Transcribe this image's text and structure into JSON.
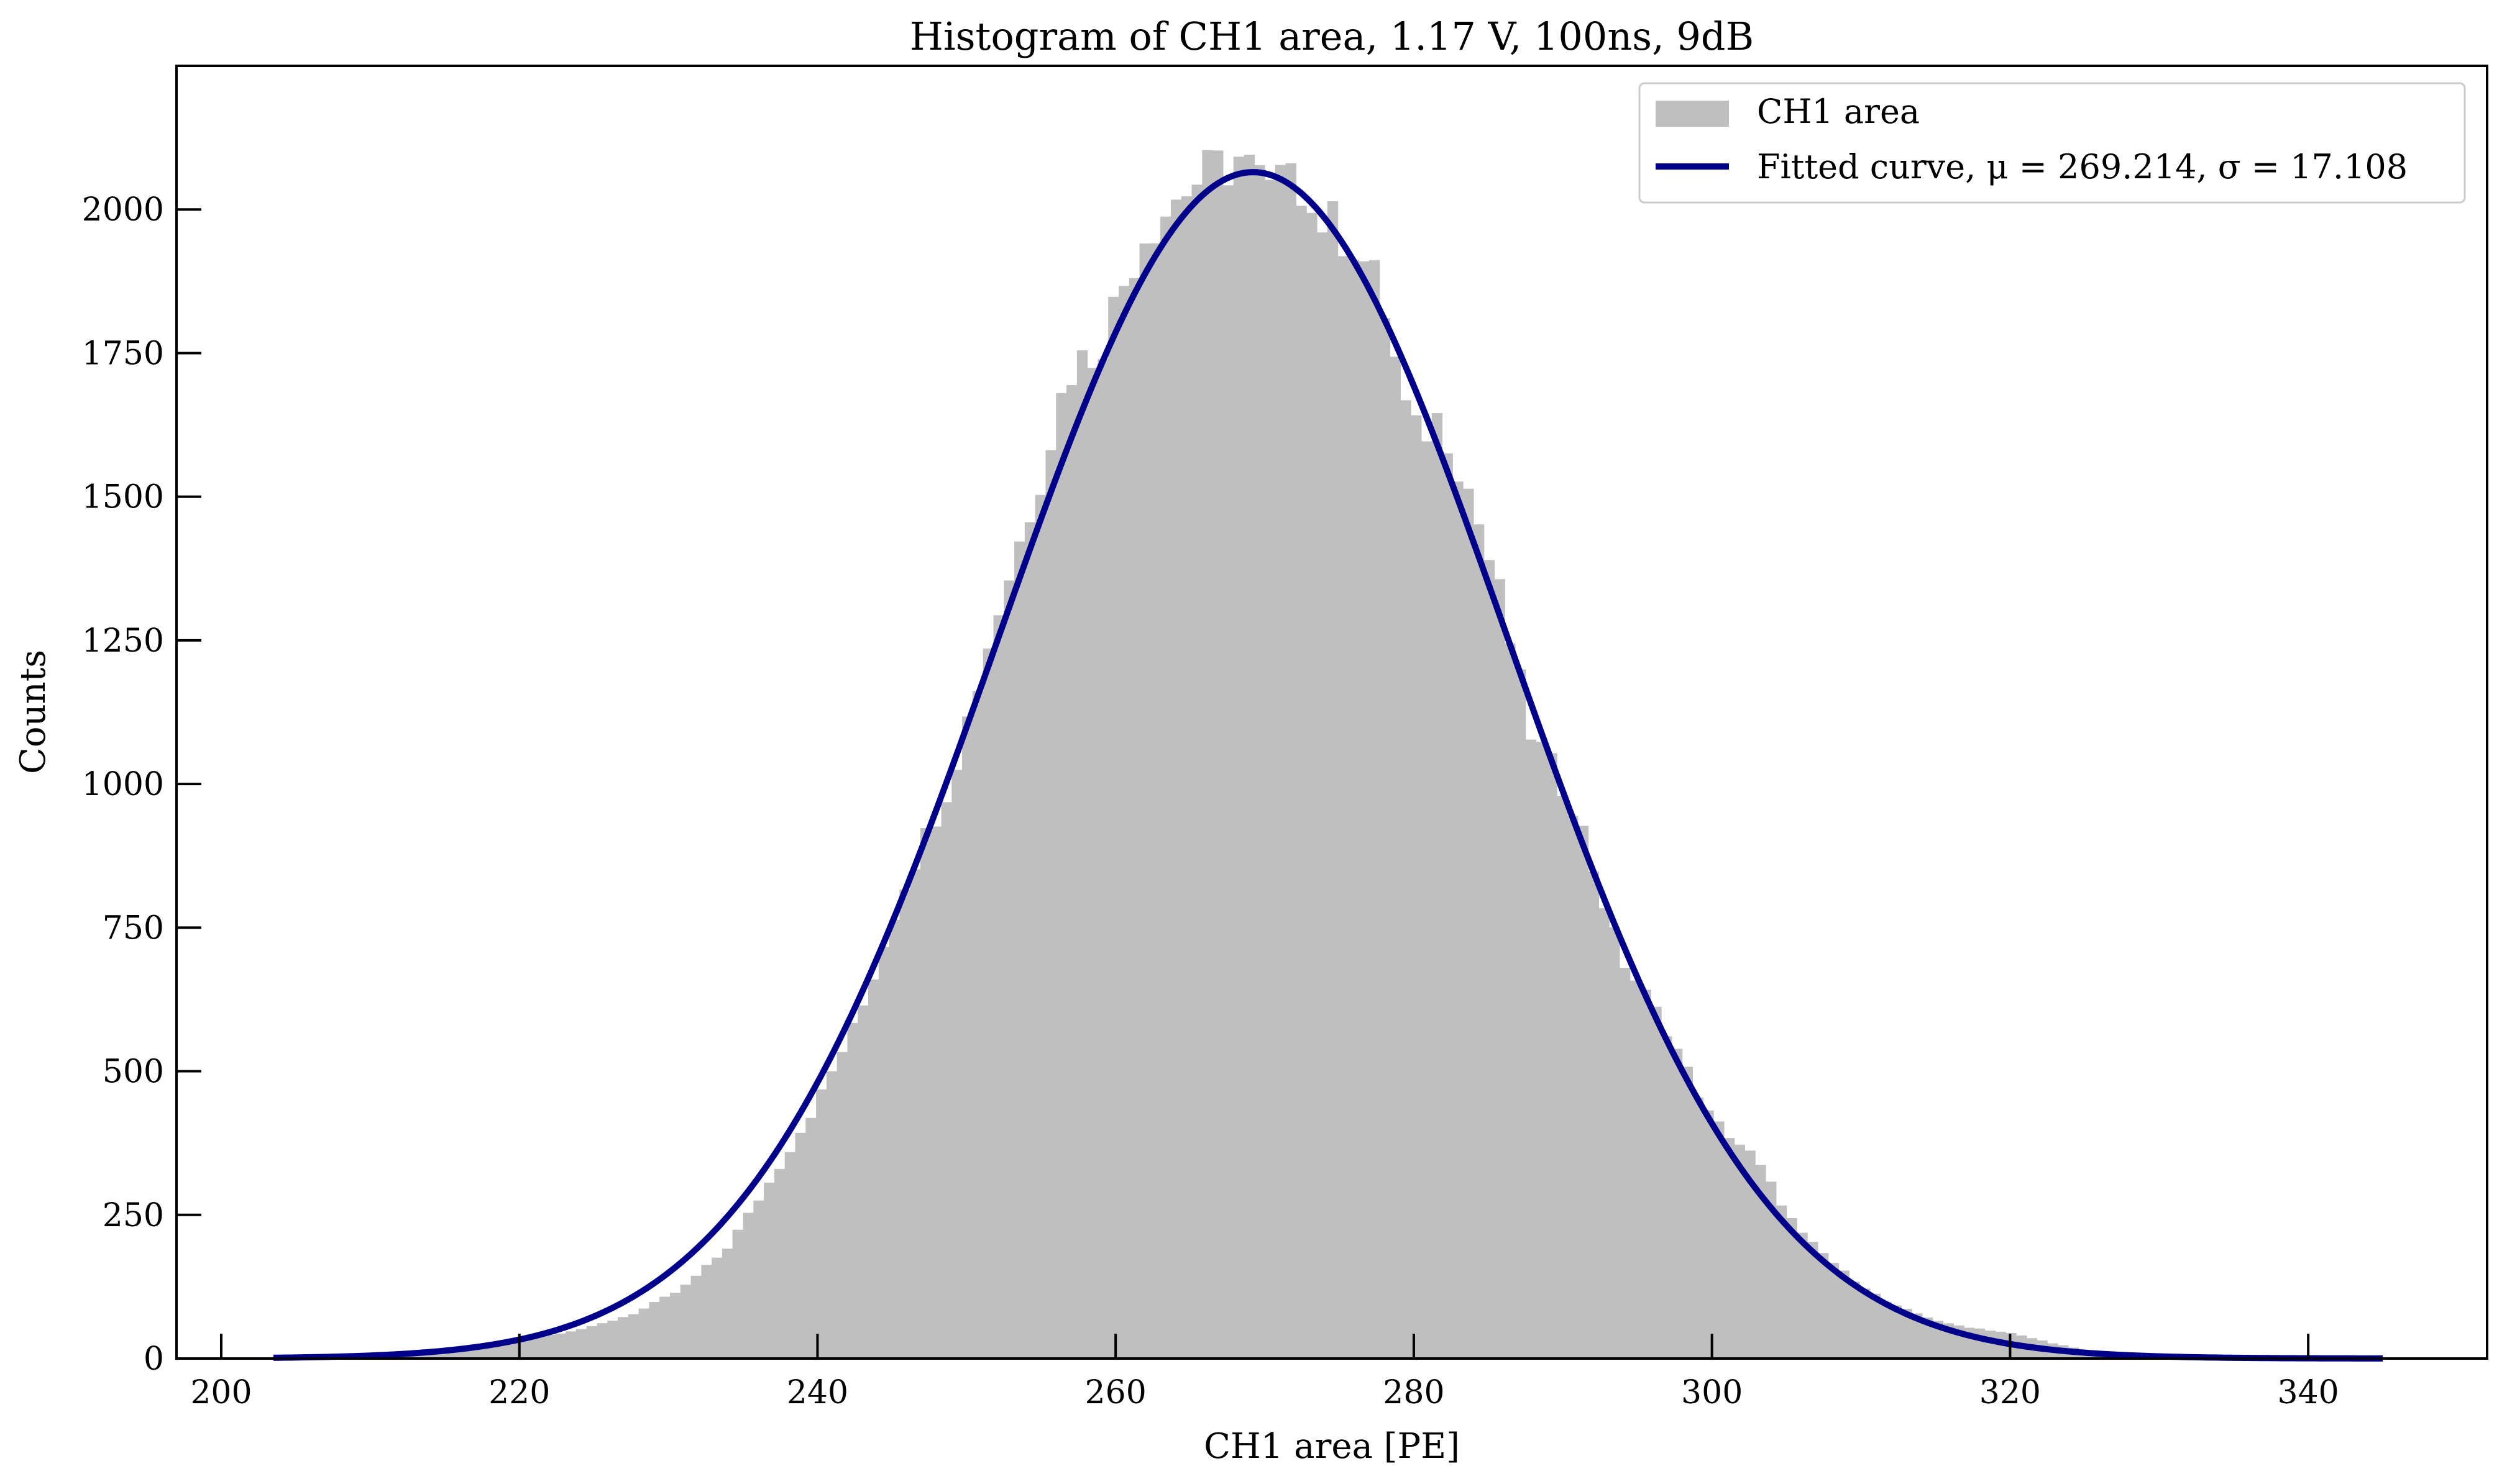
{
  "chart_data": {
    "type": "bar",
    "title": "Histogram of CH1 area, 1.17 V, 100ns, 9dB",
    "xlabel": "CH1 area [PE]",
    "ylabel": "Counts",
    "xlim": [
      197,
      352
    ],
    "ylim": [
      0,
      2250
    ],
    "grid": false,
    "legend_position": "top-right",
    "xticks": [
      200,
      220,
      240,
      260,
      280,
      300,
      320,
      340
    ],
    "yticks": [
      0,
      250,
      500,
      750,
      1000,
      1250,
      1500,
      1750,
      2000
    ],
    "histogram": {
      "name": "CH1 area",
      "color": "#bfbfbf",
      "bin_width": 0.7,
      "bins": [
        [
          203.5,
          1
        ],
        [
          210.5,
          5
        ],
        [
          215.5,
          15
        ],
        [
          219.5,
          30
        ],
        [
          221.5,
          40
        ],
        [
          224.5,
          55
        ],
        [
          227.5,
          80
        ],
        [
          230.5,
          120
        ],
        [
          233.5,
          190
        ],
        [
          236.5,
          310
        ],
        [
          239.5,
          440
        ],
        [
          242.5,
          600
        ],
        [
          245.5,
          830
        ],
        [
          248.5,
          1000
        ],
        [
          251.5,
          1280
        ],
        [
          254.5,
          1530
        ],
        [
          256.5,
          1720
        ],
        [
          258.5,
          1760
        ],
        [
          261.5,
          1960
        ],
        [
          264.5,
          2040
        ],
        [
          266.5,
          2070
        ],
        [
          268.0,
          2090
        ],
        [
          270.5,
          2010
        ],
        [
          271.5,
          2130
        ],
        [
          272.5,
          2000
        ],
        [
          275.5,
          1950
        ],
        [
          277.5,
          1850
        ],
        [
          279.5,
          1600
        ],
        [
          281.5,
          1640
        ],
        [
          283.5,
          1500
        ],
        [
          285.5,
          1320
        ],
        [
          287.5,
          1090
        ],
        [
          290.5,
          960
        ],
        [
          293.5,
          700
        ],
        [
          296.5,
          580
        ],
        [
          299.5,
          420
        ],
        [
          302.5,
          350
        ],
        [
          305.5,
          220
        ],
        [
          308.5,
          150
        ],
        [
          311.5,
          95
        ],
        [
          315.5,
          60
        ],
        [
          319.5,
          45
        ],
        [
          324.5,
          15
        ],
        [
          330.5,
          3
        ],
        [
          340.5,
          1
        ]
      ]
    },
    "fit": {
      "name": "Fitted curve, μ = 269.214, σ = 17.108",
      "color": "#00008b",
      "mu": 269.214,
      "sigma": 17.108,
      "amplitude": 2065,
      "x_range": [
        203.5,
        345
      ]
    }
  }
}
